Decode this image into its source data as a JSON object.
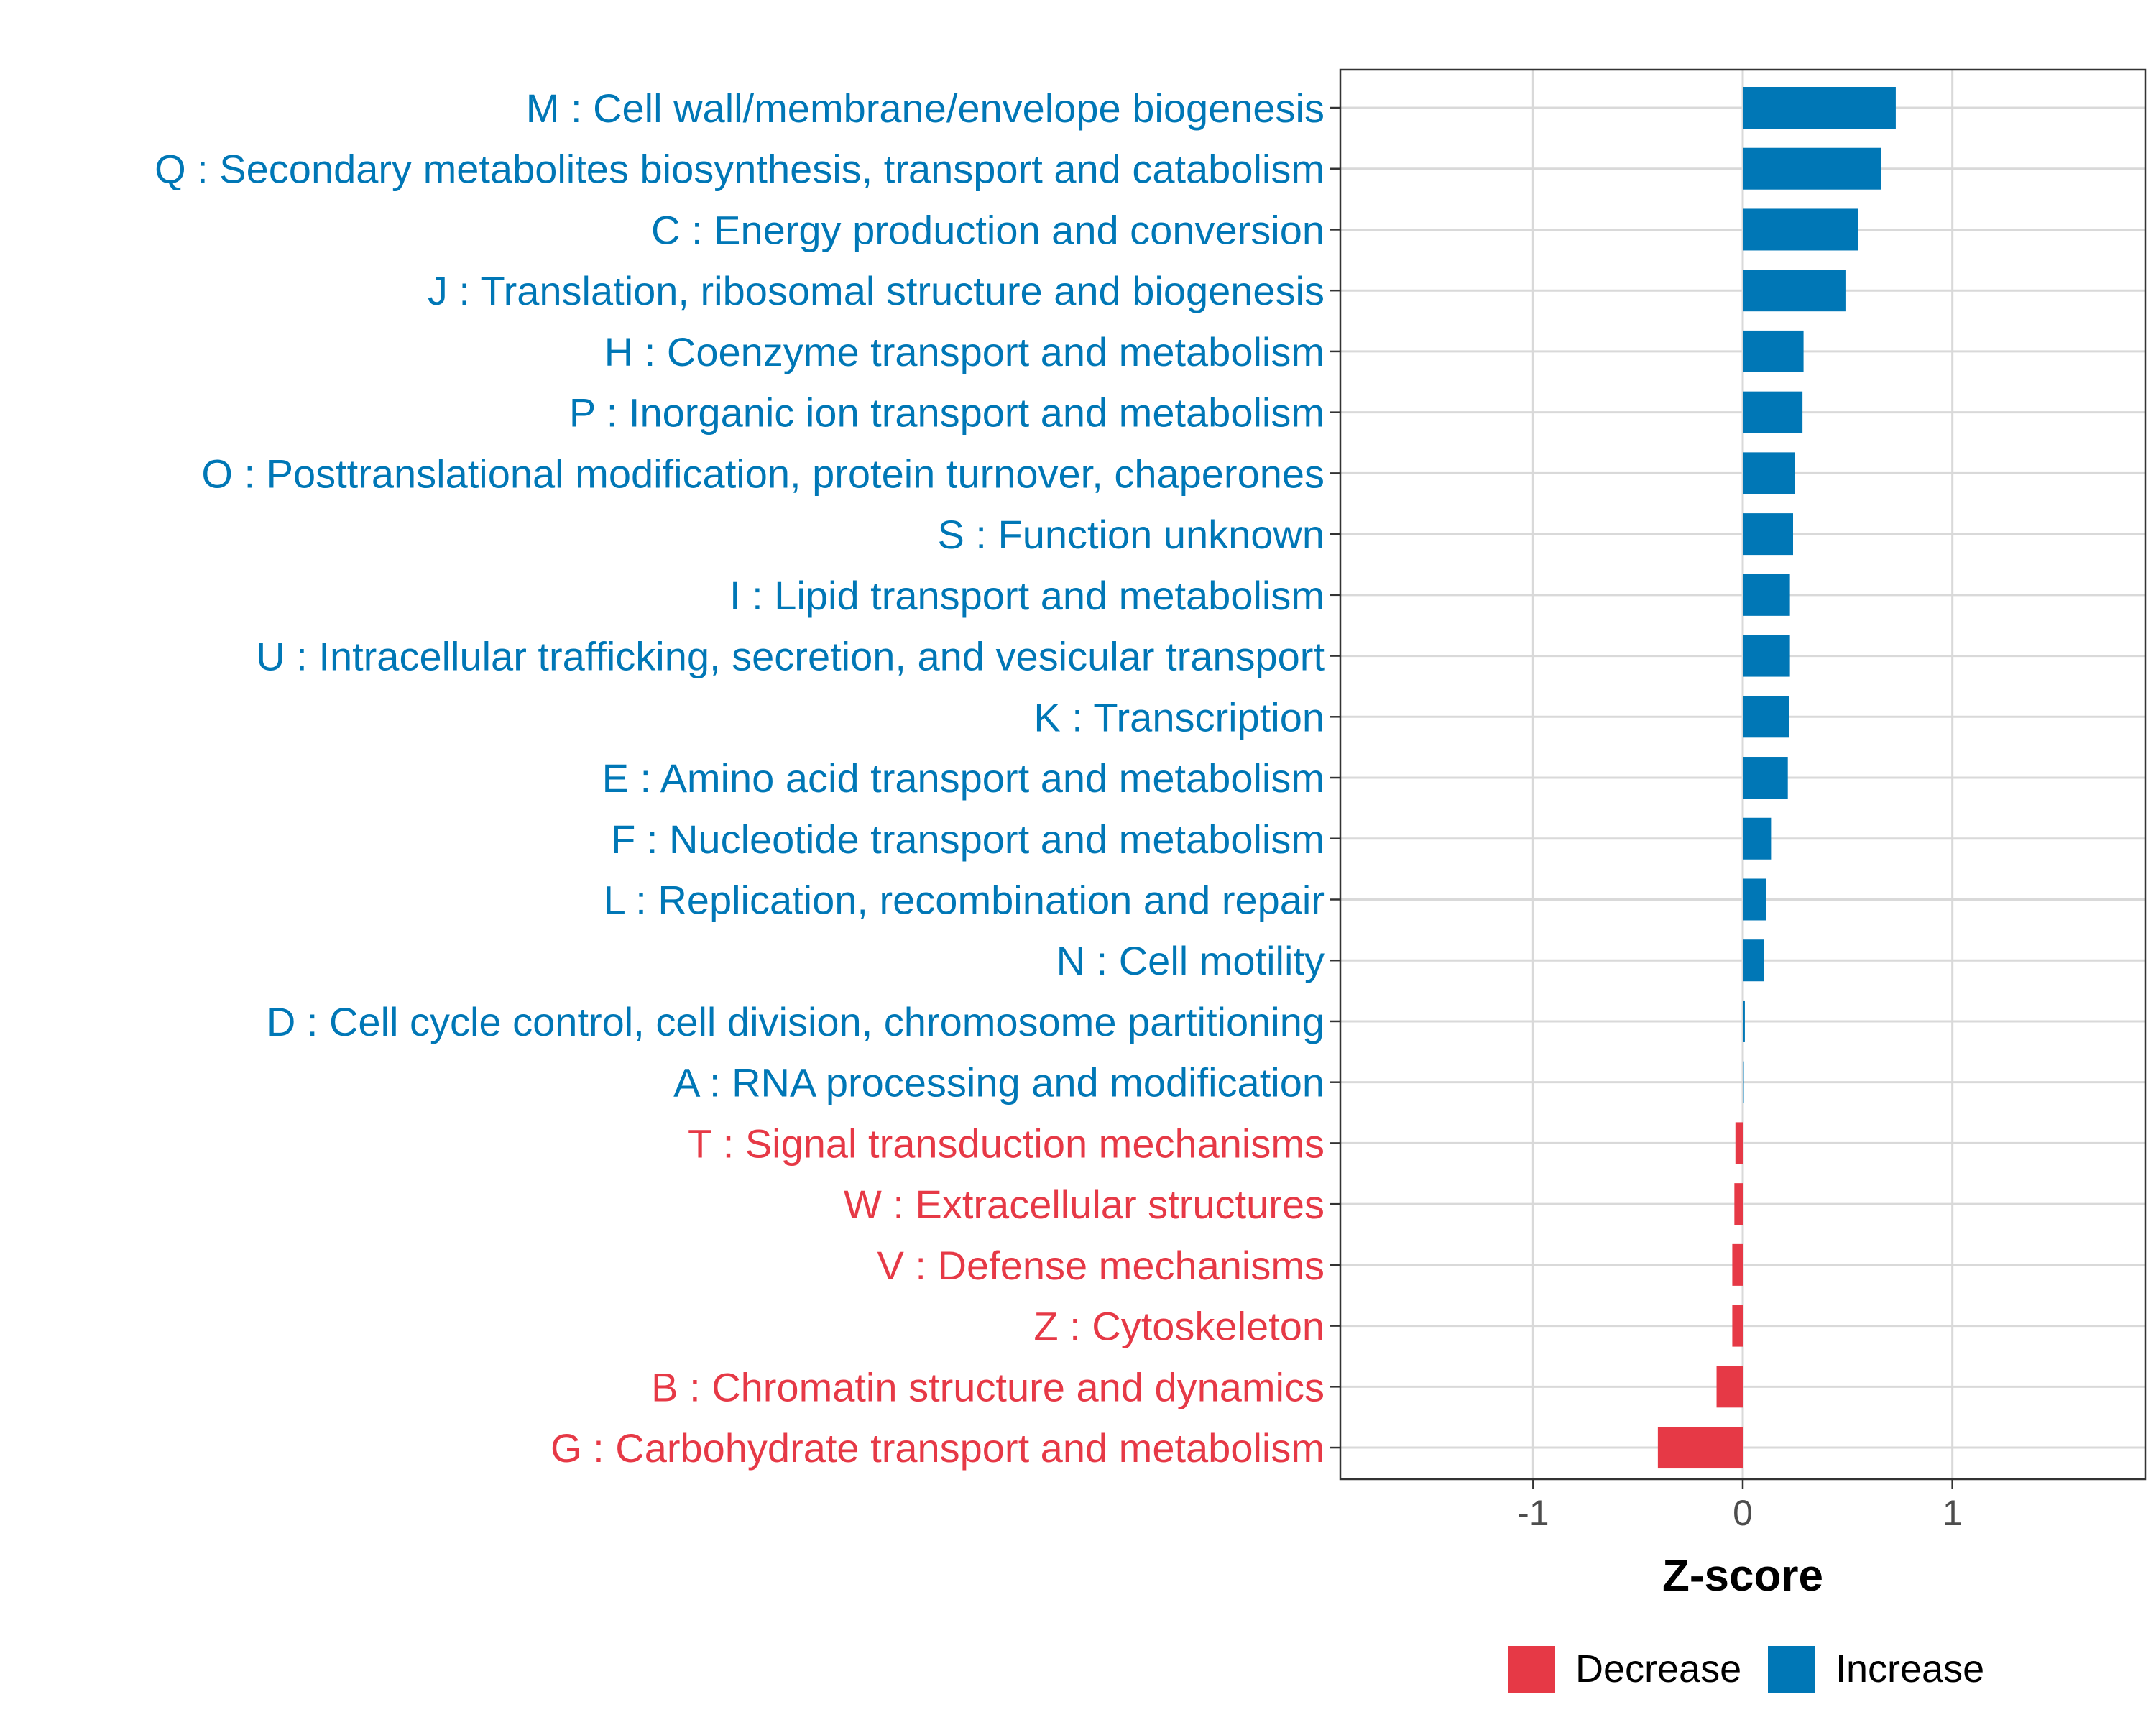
{
  "chart_data": {
    "type": "bar",
    "orientation": "horizontal",
    "title": "",
    "xlabel": "Z-score",
    "ylabel": "",
    "xlim": [
      -1.92,
      1.92
    ],
    "x_ticks": [
      -1,
      0,
      1
    ],
    "x_tick_labels": [
      "-1",
      "0",
      "1"
    ],
    "grid": true,
    "legend_position": "bottom",
    "colors": {
      "Decrease": "#E63946",
      "Increase": "#0077B6",
      "grid": "#D9D9D9",
      "axis": "#333333",
      "tick_text": "#4D4D4D"
    },
    "legend": [
      {
        "name": "Decrease",
        "color": "#E63946"
      },
      {
        "name": "Increase",
        "color": "#0077B6"
      }
    ],
    "categories": [
      "M : Cell wall/membrane/envelope biogenesis",
      "Q : Secondary metabolites biosynthesis, transport and catabolism",
      "C : Energy production and conversion",
      "J : Translation, ribosomal structure and biogenesis",
      "H : Coenzyme transport and metabolism",
      "P : Inorganic ion transport and metabolism",
      "O : Posttranslational modification, protein turnover, chaperones",
      "S : Function unknown",
      "I : Lipid transport and metabolism",
      "U : Intracellular trafficking, secretion, and vesicular transport",
      "K : Transcription",
      "E : Amino acid transport and metabolism",
      "F : Nucleotide transport and metabolism",
      "L : Replication, recombination and repair",
      "N : Cell motility",
      "D : Cell cycle control, cell division, chromosome partitioning",
      "A : RNA processing and modification",
      "T : Signal transduction mechanisms",
      "W : Extracellular structures",
      "V : Defense mechanisms",
      "Z : Cytoskeleton",
      "B : Chromatin structure and dynamics",
      "G : Carbohydrate transport and metabolism"
    ],
    "values": [
      0.73,
      0.66,
      0.55,
      0.49,
      0.29,
      0.285,
      0.25,
      0.24,
      0.225,
      0.225,
      0.22,
      0.215,
      0.135,
      0.11,
      0.1,
      0.01,
      0.005,
      -0.035,
      -0.04,
      -0.05,
      -0.05,
      -0.125,
      -0.405
    ],
    "groups": [
      "Increase",
      "Increase",
      "Increase",
      "Increase",
      "Increase",
      "Increase",
      "Increase",
      "Increase",
      "Increase",
      "Increase",
      "Increase",
      "Increase",
      "Increase",
      "Increase",
      "Increase",
      "Increase",
      "Increase",
      "Decrease",
      "Decrease",
      "Decrease",
      "Decrease",
      "Decrease",
      "Decrease"
    ]
  }
}
